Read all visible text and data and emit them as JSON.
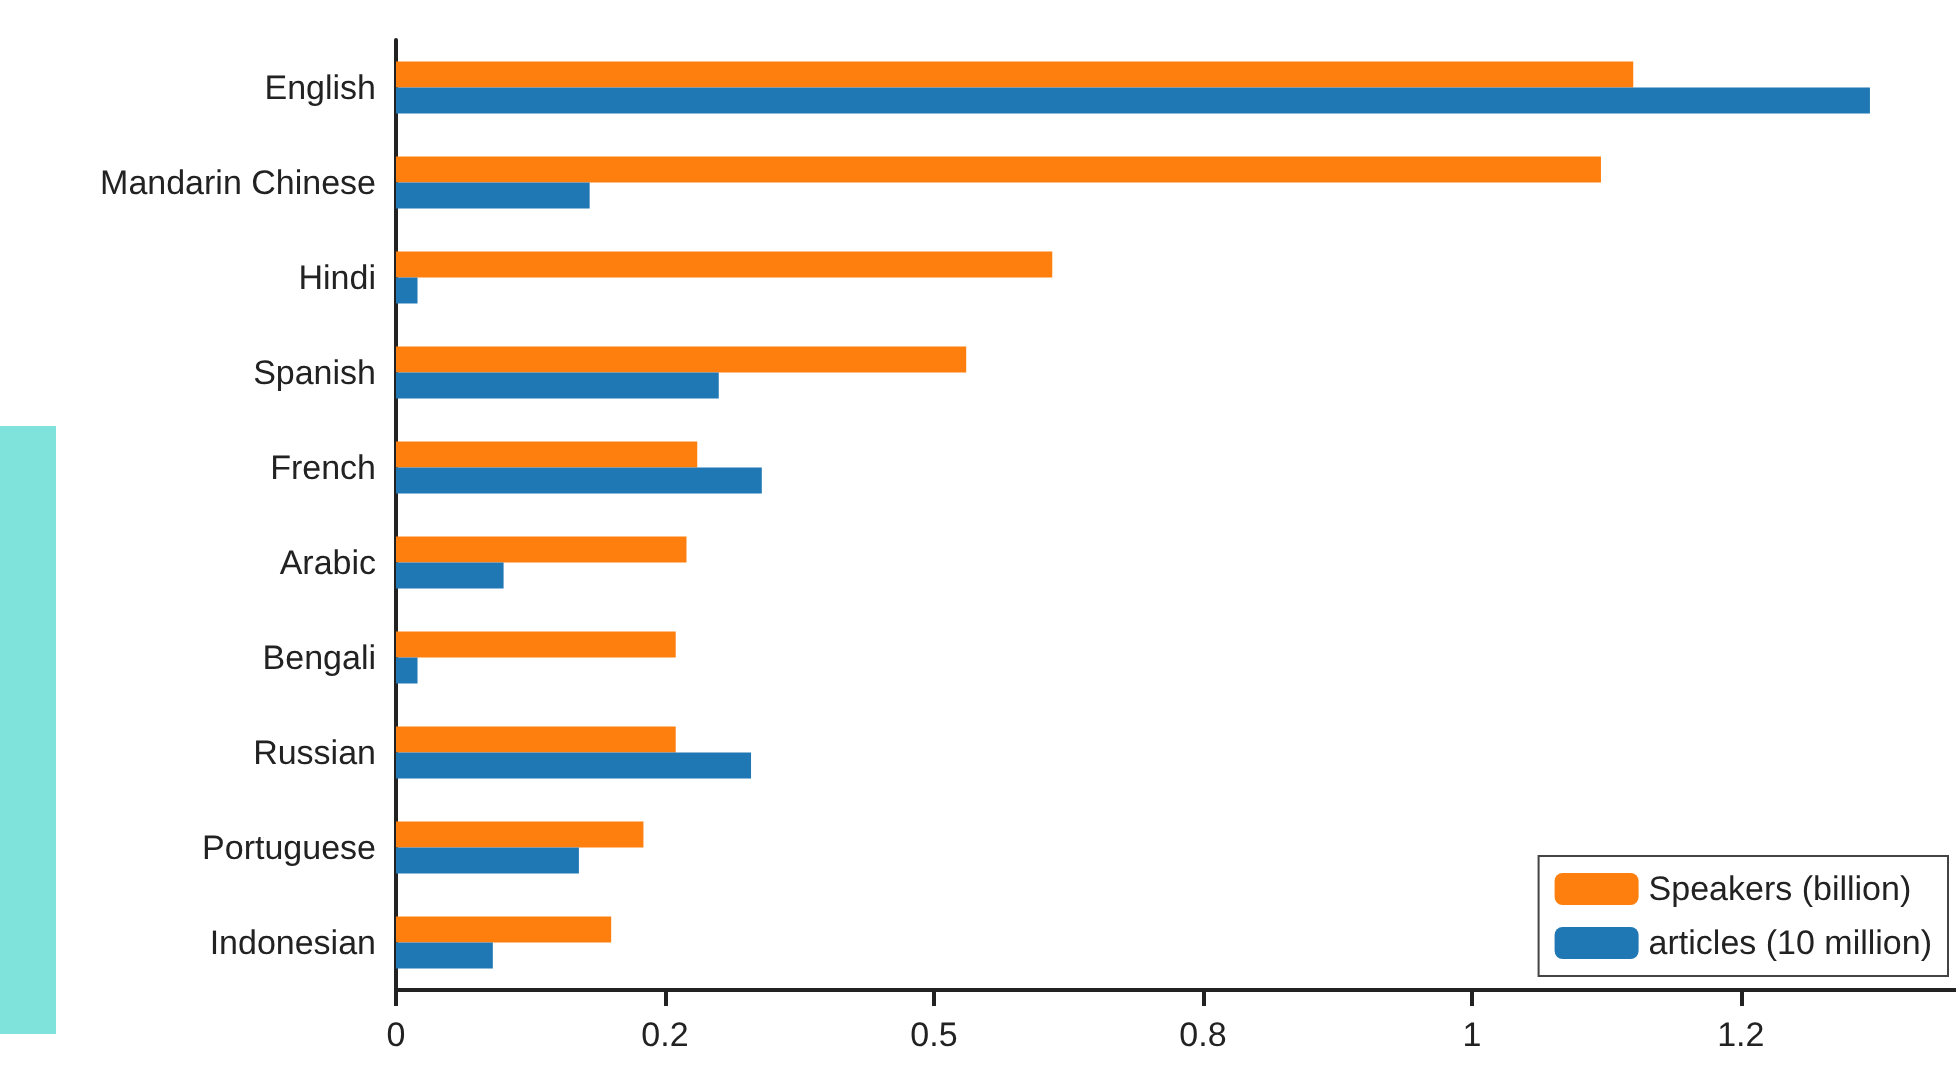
{
  "chart_data": {
    "type": "bar",
    "orientation": "horizontal",
    "categories": [
      "English",
      "Mandarin Chinese",
      "Hindi",
      "Spanish",
      "French",
      "Arabic",
      "Bengali",
      "Russian",
      "Portuguese",
      "Indonesian"
    ],
    "series": [
      {
        "name": "Speakers (billion)",
        "color": "#ff7f0e",
        "values": [
          1.15,
          1.12,
          0.61,
          0.53,
          0.28,
          0.27,
          0.26,
          0.26,
          0.23,
          0.2
        ]
      },
      {
        "name": "articles (10 million)",
        "color": "#1f77b4",
        "values": [
          1.37,
          0.18,
          0.02,
          0.3,
          0.34,
          0.1,
          0.02,
          0.33,
          0.17,
          0.09
        ]
      }
    ],
    "xlim": [
      0,
      1.45
    ],
    "xticks": [
      0,
      {
        "value": 0.25,
        "label": "0.2"
      },
      0.5,
      {
        "value": 0.75,
        "label": "0.8"
      },
      1,
      {
        "value": 1.25,
        "label": "1.2"
      }
    ],
    "grid": false,
    "legend": "bottom right"
  }
}
